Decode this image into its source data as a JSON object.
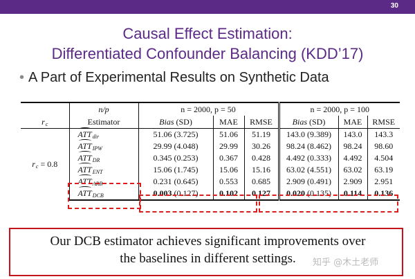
{
  "slide": {
    "number": "30",
    "title_line1": "Causal Effect Estimation:",
    "title_line2": "Differentiated Confounder Balancing (KDD’17)",
    "bullet": "A Part of Experimental Results on Synthetic Data",
    "footer_note_line1": "Our DCB estimator achieves significant improvements over",
    "footer_note_line2": "the baselines in different settings.",
    "watermark": "知乎 @木土老师",
    "colors": {
      "header_bar": "#5b2a86",
      "title": "#5b2a86",
      "highlight": "#d91e1e"
    }
  },
  "table": {
    "header": {
      "np": "n/p",
      "group1": "n = 2000, p = 50",
      "group2": "n = 2000, p = 100",
      "rc": "r",
      "rc_sub": "c",
      "estimator": "Estimator",
      "bias_sd": "Bias (SD)",
      "mae": "MAE",
      "rmse": "RMSE"
    },
    "row_group_label": "r",
    "row_group_sub": "c",
    "row_group_value": " = 0.8",
    "rows": [
      {
        "est": "ATT",
        "sub": "dir",
        "b1": "51.06 (3.725)",
        "m1": "51.06",
        "r1": "51.19",
        "b2": "143.0 (9.389)",
        "m2": "143.0",
        "r2": "143.3"
      },
      {
        "est": "ATT",
        "sub": "IPW",
        "b1": "29.99 (4.048)",
        "m1": "29.99",
        "r1": "30.26",
        "b2": "98.24 (8.462)",
        "m2": "98.24",
        "r2": "98.60"
      },
      {
        "est": "ATT",
        "sub": "DR",
        "b1": "0.345 (0.253)",
        "m1": "0.367",
        "r1": "0.428",
        "b2": "4.492 (0.333)",
        "m2": "4.492",
        "r2": "4.504"
      },
      {
        "est": "ATT",
        "sub": "ENT",
        "b1": "15.06 (1.745)",
        "m1": "15.06",
        "r1": "15.16",
        "b2": "63.02 (4.551)",
        "m2": "63.02",
        "r2": "63.19"
      },
      {
        "est": "ATT",
        "sub": "ARB",
        "b1": "0.231 (0.645)",
        "m1": "0.553",
        "r1": "0.685",
        "b2": "2.909 (0.491)",
        "m2": "2.909",
        "r2": "2.951"
      },
      {
        "est": "ATT",
        "sub": "DCB",
        "b1_bold": "0.003",
        "b1_rest": " (0.127)",
        "m1": "0.102",
        "r1": "0.127",
        "b2_bold": "0.020",
        "b2_rest": " (0.135)",
        "m2": "0.114",
        "r2": "0.136"
      }
    ]
  }
}
